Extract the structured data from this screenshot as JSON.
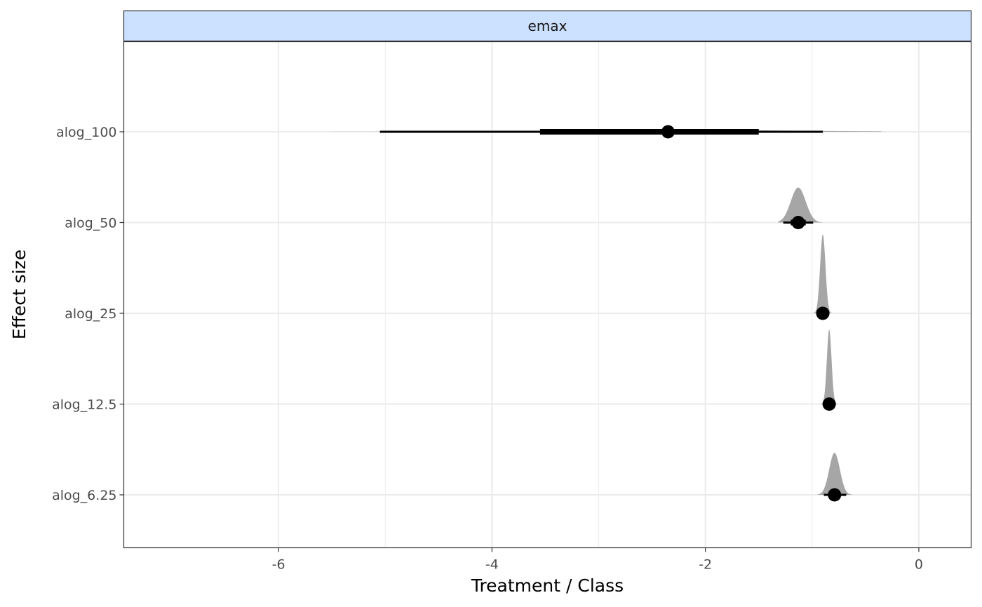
{
  "chart_data": {
    "type": "interval",
    "facet_label": "emax",
    "xlabel": "Treatment / Class",
    "ylabel": "Effect size",
    "xlim": [
      -7.45,
      0.49
    ],
    "x_ticks": [
      -6,
      -4,
      -2,
      0
    ],
    "x_tick_labels": [
      "-6",
      "-4",
      "-2",
      "0"
    ],
    "categories": [
      "alog_100",
      "alog_50",
      "alog_25",
      "alog_12.5",
      "alog_6.25"
    ],
    "grid": true,
    "series": [
      {
        "category": "alog_100",
        "median": -2.35,
        "interval_66": [
          -3.55,
          -1.5
        ],
        "interval_95": [
          -5.05,
          -0.9
        ],
        "density_range": [
          -5.5,
          -0.35
        ],
        "density_mode": -2.35,
        "density_sd": 1.2,
        "density_height": 0.02
      },
      {
        "category": "alog_50",
        "median": -1.13,
        "interval_66": [
          -1.2,
          -1.06
        ],
        "interval_95": [
          -1.27,
          -0.99
        ],
        "density_range": [
          -1.32,
          -0.9
        ],
        "density_mode": -1.13,
        "density_sd": 0.07,
        "density_height": 0.4
      },
      {
        "category": "alog_25",
        "median": -0.9,
        "interval_66": [
          -0.93,
          -0.87
        ],
        "interval_95": [
          -0.96,
          -0.84
        ],
        "density_range": [
          -0.99,
          -0.81
        ],
        "density_mode": -0.9,
        "density_sd": 0.025,
        "density_height": 0.9
      },
      {
        "category": "alog_12.5",
        "median": -0.84,
        "interval_66": [
          -0.87,
          -0.81
        ],
        "interval_95": [
          -0.89,
          -0.79
        ],
        "density_range": [
          -0.92,
          -0.76
        ],
        "density_mode": -0.84,
        "density_sd": 0.022,
        "density_height": 0.85
      },
      {
        "category": "alog_6.25",
        "median": -0.79,
        "interval_66": [
          -0.84,
          -0.74
        ],
        "interval_95": [
          -0.89,
          -0.68
        ],
        "density_range": [
          -0.95,
          -0.62
        ],
        "density_mode": -0.79,
        "density_sd": 0.05,
        "density_height": 0.48
      }
    ],
    "colors": {
      "density_fill": "#a6a6a6",
      "interval": "#000000",
      "grid": "#ebebeb",
      "strip_fill": "#cce0ff",
      "panel_border": "#333333"
    }
  }
}
